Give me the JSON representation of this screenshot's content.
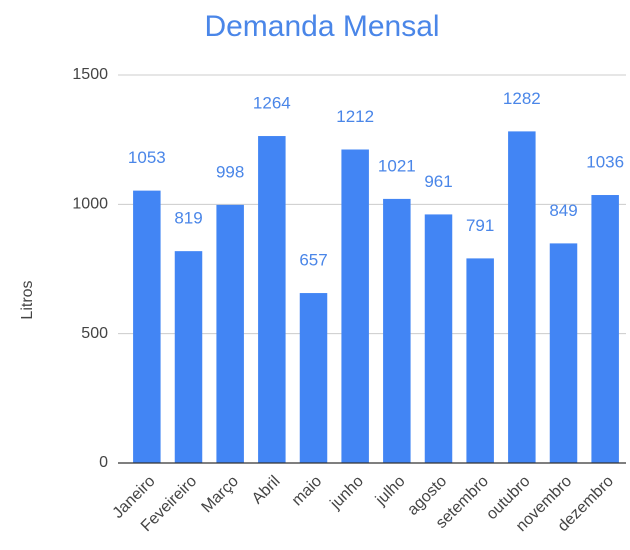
{
  "chart_data": {
    "type": "bar",
    "title": "Demanda Mensal",
    "y_label": "Litros",
    "categories": [
      "Janeiro",
      "Feveireiro",
      "Março",
      "Abril",
      "maio",
      "junho",
      "julho",
      "agosto",
      "setembro",
      "outubro",
      "novembro",
      "dezembro"
    ],
    "values": [
      1053,
      819,
      998,
      1264,
      657,
      1212,
      1021,
      961,
      791,
      1282,
      849,
      1036
    ],
    "color": "#4285f4",
    "ylim": [
      0,
      1500
    ],
    "yticks": [
      0,
      500,
      1000,
      1500
    ],
    "grid": true
  }
}
